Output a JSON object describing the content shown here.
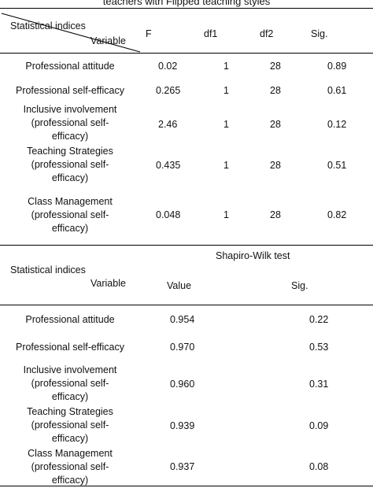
{
  "caption_fragment": "teachers with Flipped  teaching styles",
  "levene_table": {
    "corner_top": "Statistical indices",
    "corner_bottom": "Variable",
    "headers": [
      "F",
      "df1",
      "df2",
      "Sig."
    ],
    "rows": [
      {
        "variable": [
          "Professional attitude"
        ],
        "F": "0.02",
        "df1": "1",
        "df2": "28",
        "sig": "0.89"
      },
      {
        "variable": [
          "Professional self-efficacy"
        ],
        "F": "0.265",
        "df1": "1",
        "df2": "28",
        "sig": "0.61"
      },
      {
        "variable": [
          "Inclusive involvement",
          "(professional self-",
          "efficacy)"
        ],
        "F": "2.46",
        "df1": "1",
        "df2": "28",
        "sig": "0.12"
      },
      {
        "variable": [
          "Teaching Strategies",
          "(professional self-",
          "efficacy)"
        ],
        "F": "0.435",
        "df1": "1",
        "df2": "28",
        "sig": "0.51"
      },
      {
        "variable": [
          "Class Management",
          "(professional self-",
          "efficacy)"
        ],
        "F": "0.048",
        "df1": "1",
        "df2": "28",
        "sig": "0.82"
      }
    ]
  },
  "shapiro_table": {
    "test_name": "Shapiro-Wilk test",
    "corner_top": "Statistical indices",
    "corner_bottom": "Variable",
    "headers": [
      "Value",
      "Sig."
    ],
    "rows": [
      {
        "variable": [
          "Professional attitude"
        ],
        "value": "0.954",
        "sig": "0.22"
      },
      {
        "variable": [
          "Professional self-efficacy"
        ],
        "value": "0.970",
        "sig": "0.53"
      },
      {
        "variable": [
          "Inclusive involvement",
          "(professional self-",
          "efficacy)"
        ],
        "value": "0.960",
        "sig": "0.31"
      },
      {
        "variable": [
          "Teaching Strategies",
          "(professional self-",
          "efficacy)"
        ],
        "value": "0.939",
        "sig": "0.09"
      },
      {
        "variable": [
          "Class Management",
          "(professional self-",
          "efficacy)"
        ],
        "value": "0.937",
        "sig": "0.08"
      }
    ]
  }
}
